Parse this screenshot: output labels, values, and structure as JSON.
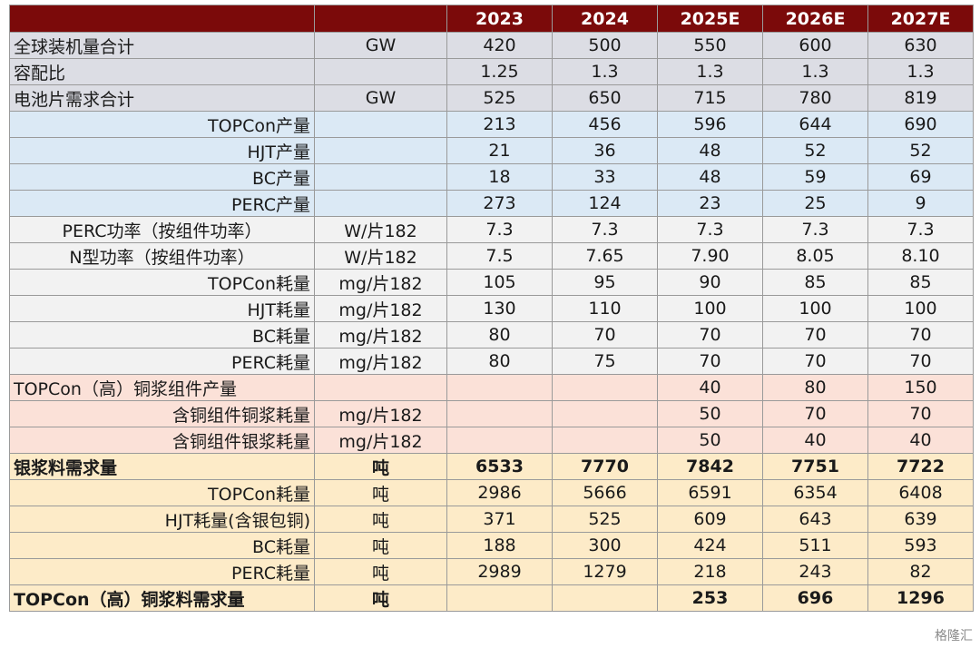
{
  "chart_data": {
    "type": "table",
    "columns": [
      "",
      "",
      "2023",
      "2024",
      "2025E",
      "2026E",
      "2027E"
    ],
    "rows": [
      {
        "label": "全球装机量合计",
        "unit": "GW",
        "values": [
          "420",
          "500",
          "550",
          "600",
          "630"
        ]
      },
      {
        "label": "容配比",
        "unit": "",
        "values": [
          "1.25",
          "1.3",
          "1.3",
          "1.3",
          "1.3"
        ]
      },
      {
        "label": "电池片需求合计",
        "unit": "GW",
        "values": [
          "525",
          "650",
          "715",
          "780",
          "819"
        ]
      },
      {
        "label": "TOPCon产量",
        "unit": "",
        "values": [
          "213",
          "456",
          "596",
          "644",
          "690"
        ]
      },
      {
        "label": "HJT产量",
        "unit": "",
        "values": [
          "21",
          "36",
          "48",
          "52",
          "52"
        ]
      },
      {
        "label": "BC产量",
        "unit": "",
        "values": [
          "18",
          "33",
          "48",
          "59",
          "69"
        ]
      },
      {
        "label": "PERC产量",
        "unit": "",
        "values": [
          "273",
          "124",
          "23",
          "25",
          "9"
        ]
      },
      {
        "label": "PERC功率（按组件功率）",
        "unit": "W/片182",
        "values": [
          "7.3",
          "7.3",
          "7.3",
          "7.3",
          "7.3"
        ]
      },
      {
        "label": "N型功率（按组件功率）",
        "unit": "W/片182",
        "values": [
          "7.5",
          "7.65",
          "7.90",
          "8.05",
          "8.10"
        ]
      },
      {
        "label": "TOPCon耗量",
        "unit": "mg/片182",
        "values": [
          "105",
          "95",
          "90",
          "85",
          "85"
        ]
      },
      {
        "label": "HJT耗量",
        "unit": "mg/片182",
        "values": [
          "130",
          "110",
          "100",
          "100",
          "100"
        ]
      },
      {
        "label": "BC耗量",
        "unit": "mg/片182",
        "values": [
          "80",
          "70",
          "70",
          "70",
          "70"
        ]
      },
      {
        "label": "PERC耗量",
        "unit": "mg/片182",
        "values": [
          "80",
          "75",
          "70",
          "70",
          "70"
        ]
      },
      {
        "label": "TOPCon（高）铜浆组件产量",
        "unit": "",
        "values": [
          "",
          "",
          "40",
          "80",
          "150"
        ]
      },
      {
        "label": "含铜组件铜浆耗量",
        "unit": "mg/片182",
        "values": [
          "",
          "",
          "50",
          "70",
          "70"
        ]
      },
      {
        "label": "含铜组件银浆耗量",
        "unit": "mg/片182",
        "values": [
          "",
          "",
          "50",
          "40",
          "40"
        ]
      },
      {
        "label": "银浆料需求量",
        "unit": "吨",
        "values": [
          "6533",
          "7770",
          "7842",
          "7751",
          "7722"
        ]
      },
      {
        "label": "TOPCon耗量",
        "unit": "吨",
        "values": [
          "2986",
          "5666",
          "6591",
          "6354",
          "6408"
        ]
      },
      {
        "label": "HJT耗量(含银包铜)",
        "unit": "吨",
        "values": [
          "371",
          "525",
          "609",
          "643",
          "639"
        ]
      },
      {
        "label": "BC耗量",
        "unit": "吨",
        "values": [
          "188",
          "300",
          "424",
          "511",
          "593"
        ]
      },
      {
        "label": "PERC耗量",
        "unit": "吨",
        "values": [
          "2989",
          "1279",
          "218",
          "243",
          "82"
        ]
      },
      {
        "label": "TOPCon（高）铜浆料需求量",
        "unit": "吨",
        "values": [
          "",
          "",
          "253",
          "696",
          "1296"
        ]
      }
    ]
  },
  "watermark": "格隆汇"
}
